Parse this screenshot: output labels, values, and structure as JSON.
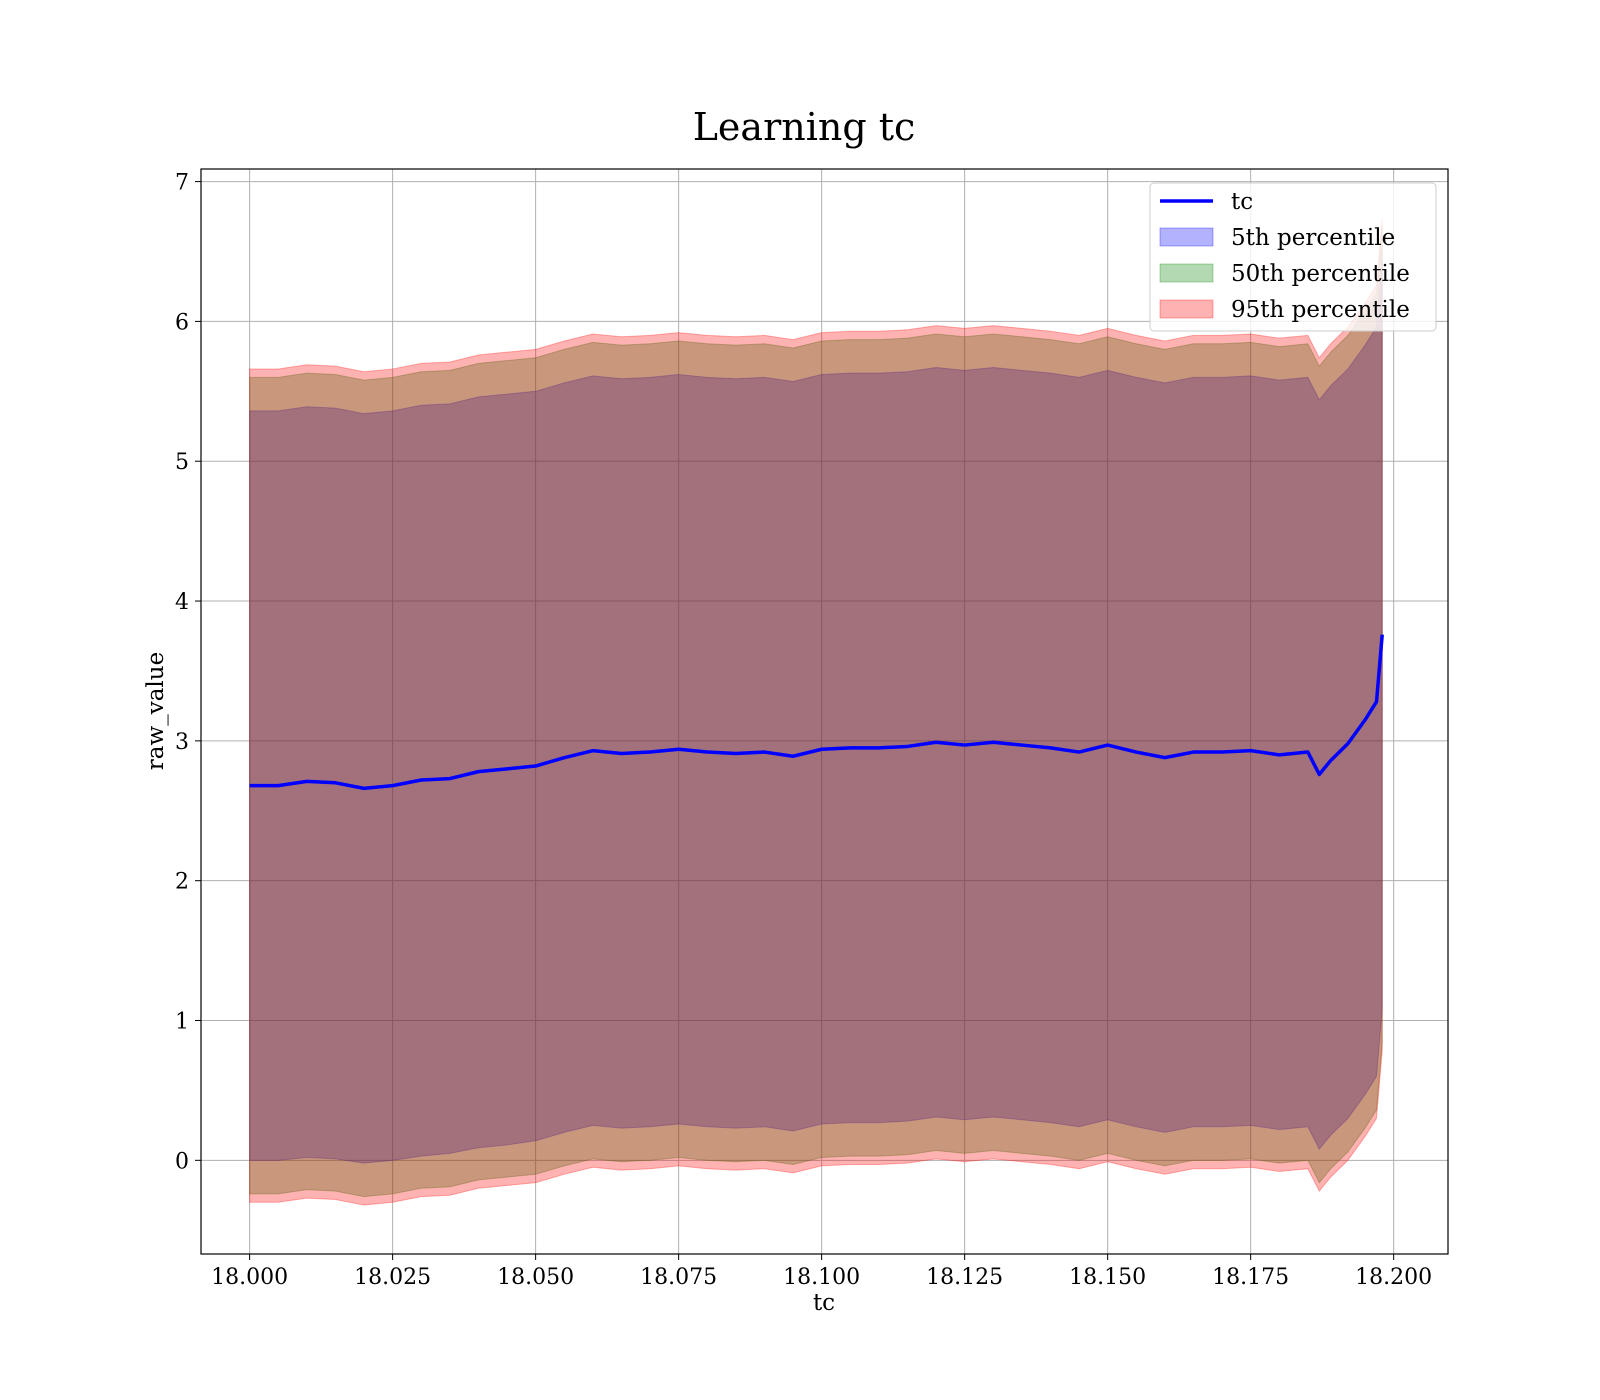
{
  "chart_data": {
    "type": "line",
    "title": "Learning tc",
    "xlabel": "tc",
    "ylabel": "raw_value",
    "xlim": [
      17.9915,
      18.2095
    ],
    "ylim": [
      -0.67,
      7.09
    ],
    "xticks": [
      18.0,
      18.025,
      18.05,
      18.075,
      18.1,
      18.125,
      18.15,
      18.175,
      18.2
    ],
    "xtick_labels": [
      "18.000",
      "18.025",
      "18.050",
      "18.075",
      "18.100",
      "18.125",
      "18.150",
      "18.175",
      "18.200"
    ],
    "yticks": [
      0,
      1,
      2,
      3,
      4,
      5,
      6,
      7
    ],
    "ytick_labels": [
      "0",
      "1",
      "2",
      "3",
      "4",
      "5",
      "6",
      "7"
    ],
    "grid": true,
    "legend_position": "top-right",
    "x": [
      18.0,
      18.005,
      18.01,
      18.015,
      18.02,
      18.025,
      18.03,
      18.035,
      18.04,
      18.045,
      18.05,
      18.055,
      18.06,
      18.065,
      18.07,
      18.075,
      18.08,
      18.085,
      18.09,
      18.095,
      18.1,
      18.105,
      18.11,
      18.115,
      18.12,
      18.125,
      18.13,
      18.135,
      18.14,
      18.145,
      18.15,
      18.155,
      18.16,
      18.165,
      18.17,
      18.175,
      18.18,
      18.185,
      18.187,
      18.189,
      18.192,
      18.195,
      18.197,
      18.198
    ],
    "series": [
      {
        "name": "tc",
        "type": "line",
        "color": "#0000ff",
        "values": [
          2.68,
          2.68,
          2.71,
          2.7,
          2.66,
          2.68,
          2.72,
          2.73,
          2.78,
          2.8,
          2.82,
          2.88,
          2.93,
          2.91,
          2.92,
          2.94,
          2.92,
          2.91,
          2.92,
          2.89,
          2.94,
          2.95,
          2.95,
          2.96,
          2.99,
          2.97,
          2.99,
          2.97,
          2.95,
          2.92,
          2.97,
          2.92,
          2.88,
          2.92,
          2.92,
          2.93,
          2.9,
          2.92,
          2.76,
          2.86,
          2.98,
          3.15,
          3.28,
          3.76
        ]
      },
      {
        "name": "5th percentile",
        "type": "band",
        "color": "#0000ff",
        "lower": [
          0.0,
          0.0,
          0.02,
          0.01,
          -0.02,
          0.0,
          0.03,
          0.05,
          0.09,
          0.11,
          0.14,
          0.2,
          0.25,
          0.23,
          0.24,
          0.26,
          0.24,
          0.23,
          0.24,
          0.21,
          0.26,
          0.27,
          0.27,
          0.28,
          0.31,
          0.29,
          0.31,
          0.29,
          0.27,
          0.24,
          0.29,
          0.24,
          0.2,
          0.24,
          0.24,
          0.25,
          0.22,
          0.24,
          0.08,
          0.18,
          0.3,
          0.47,
          0.6,
          1.08
        ],
        "upper": [
          5.36,
          5.36,
          5.39,
          5.38,
          5.34,
          5.36,
          5.4,
          5.41,
          5.46,
          5.48,
          5.5,
          5.56,
          5.61,
          5.59,
          5.6,
          5.62,
          5.6,
          5.59,
          5.6,
          5.57,
          5.62,
          5.63,
          5.63,
          5.64,
          5.67,
          5.65,
          5.67,
          5.65,
          5.63,
          5.6,
          5.65,
          5.6,
          5.56,
          5.6,
          5.6,
          5.61,
          5.58,
          5.6,
          5.44,
          5.54,
          5.66,
          5.83,
          5.96,
          6.44
        ]
      },
      {
        "name": "50th percentile",
        "type": "band",
        "color": "#008000",
        "lower": [
          -0.24,
          -0.24,
          -0.21,
          -0.22,
          -0.26,
          -0.24,
          -0.2,
          -0.19,
          -0.14,
          -0.12,
          -0.1,
          -0.04,
          0.01,
          -0.01,
          0.0,
          0.02,
          0.0,
          -0.01,
          0.0,
          -0.03,
          0.02,
          0.03,
          0.03,
          0.04,
          0.07,
          0.05,
          0.07,
          0.05,
          0.03,
          0.0,
          0.05,
          0.0,
          -0.04,
          0.0,
          0.0,
          0.01,
          -0.02,
          0.0,
          -0.16,
          -0.06,
          0.06,
          0.23,
          0.36,
          0.84
        ],
        "upper": [
          5.6,
          5.6,
          5.63,
          5.62,
          5.58,
          5.6,
          5.64,
          5.65,
          5.7,
          5.72,
          5.74,
          5.8,
          5.85,
          5.83,
          5.84,
          5.86,
          5.84,
          5.83,
          5.84,
          5.81,
          5.86,
          5.87,
          5.87,
          5.88,
          5.91,
          5.89,
          5.91,
          5.89,
          5.87,
          5.84,
          5.89,
          5.84,
          5.8,
          5.84,
          5.84,
          5.85,
          5.82,
          5.84,
          5.68,
          5.78,
          5.9,
          6.07,
          6.2,
          6.68
        ]
      },
      {
        "name": "95th percentile",
        "type": "band",
        "color": "#ff0000",
        "lower": [
          -0.3,
          -0.3,
          -0.27,
          -0.28,
          -0.32,
          -0.3,
          -0.26,
          -0.25,
          -0.2,
          -0.18,
          -0.16,
          -0.1,
          -0.05,
          -0.07,
          -0.06,
          -0.04,
          -0.06,
          -0.07,
          -0.06,
          -0.09,
          -0.04,
          -0.03,
          -0.03,
          -0.02,
          0.01,
          -0.01,
          0.01,
          -0.01,
          -0.03,
          -0.06,
          -0.01,
          -0.06,
          -0.1,
          -0.06,
          -0.06,
          -0.05,
          -0.08,
          -0.06,
          -0.22,
          -0.12,
          0.0,
          0.17,
          0.3,
          0.78
        ],
        "upper": [
          5.66,
          5.66,
          5.69,
          5.68,
          5.64,
          5.66,
          5.7,
          5.71,
          5.76,
          5.78,
          5.8,
          5.86,
          5.91,
          5.89,
          5.9,
          5.92,
          5.9,
          5.89,
          5.9,
          5.87,
          5.92,
          5.93,
          5.93,
          5.94,
          5.97,
          5.95,
          5.97,
          5.95,
          5.93,
          5.9,
          5.95,
          5.9,
          5.86,
          5.9,
          5.9,
          5.91,
          5.88,
          5.9,
          5.74,
          5.84,
          5.96,
          6.13,
          6.26,
          6.74
        ]
      }
    ]
  }
}
